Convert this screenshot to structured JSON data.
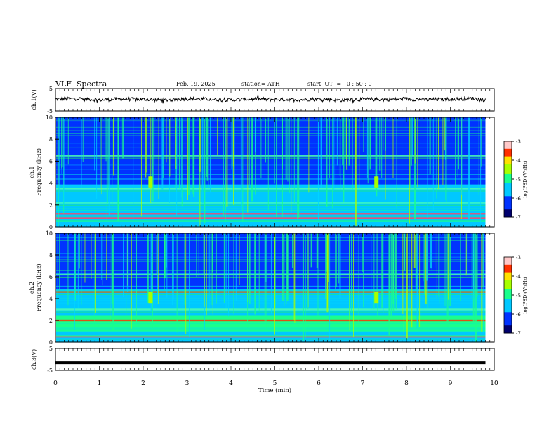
{
  "header": {
    "title": "VLF  Spectra",
    "date": "Feb. 19, 2025",
    "station": "station= ATH",
    "start": "start  UT  =   0 : 50 : 0"
  },
  "chart_data": [
    {
      "type": "line",
      "name": "ch1-waveform",
      "ylabel": "ch.1(V)",
      "ylim": [
        -5,
        5
      ],
      "yticks": [
        5,
        -5
      ],
      "x": [
        0,
        0.5,
        1,
        1.5,
        2,
        2.5,
        3,
        3.5,
        4,
        4.5,
        5,
        5.5,
        6,
        6.5,
        7,
        7.5,
        8,
        8.5,
        9,
        9.5,
        9.8
      ],
      "y": [
        0.2,
        0.5,
        -0.1,
        0.3,
        0.1,
        -0.2,
        0.4,
        0.2,
        -0.1,
        0.3,
        0.1,
        0.0,
        0.3,
        -0.2,
        0.2,
        0.1,
        0.3,
        0.0,
        0.2,
        0.6,
        -0.2
      ]
    },
    {
      "type": "heatmap",
      "name": "ch1-spectrogram",
      "ylabel": "ch.1\nFrequency  (kHz)",
      "ylim": [
        0,
        10
      ],
      "yticks": [
        0,
        2,
        4,
        6,
        8,
        10
      ],
      "colorbar": {
        "label": "log(PSD)(V²/Hz)",
        "range": [
          -7,
          -3
        ],
        "ticks": [
          -3,
          -4,
          -5,
          -6,
          -7
        ]
      },
      "bands_khz": [
        0.8,
        1.2,
        2.2,
        3.5,
        6.5
      ],
      "event_times_min": [
        2.15,
        7.3
      ]
    },
    {
      "type": "heatmap",
      "name": "ch2-spectrogram",
      "ylabel": "ch.2\nFrequency  (kHz)",
      "ylim": [
        0,
        10
      ],
      "yticks": [
        0,
        2,
        4,
        6,
        8,
        10
      ],
      "colorbar": {
        "label": "log(PSD)(V²/Hz)",
        "range": [
          -7,
          -3
        ],
        "ticks": [
          -3,
          -4,
          -5,
          -6,
          -7
        ]
      },
      "bands_khz": [
        0.5,
        2.0,
        3.0,
        4.6,
        6.2
      ],
      "event_times_min": [
        2.15,
        7.3
      ]
    },
    {
      "type": "line",
      "name": "ch3-waveform",
      "ylabel": "ch.3(V)",
      "ylim": [
        -5,
        5
      ],
      "yticks": [
        5,
        -5
      ],
      "x": [
        0,
        9.8
      ],
      "y": [
        -1.5,
        -1.5
      ]
    }
  ],
  "xaxis": {
    "label": "Time  (min)",
    "range": [
      0,
      10
    ],
    "ticks": [
      0,
      1,
      2,
      3,
      4,
      5,
      6,
      7,
      8,
      9,
      10
    ],
    "data_end_min": 9.8
  }
}
